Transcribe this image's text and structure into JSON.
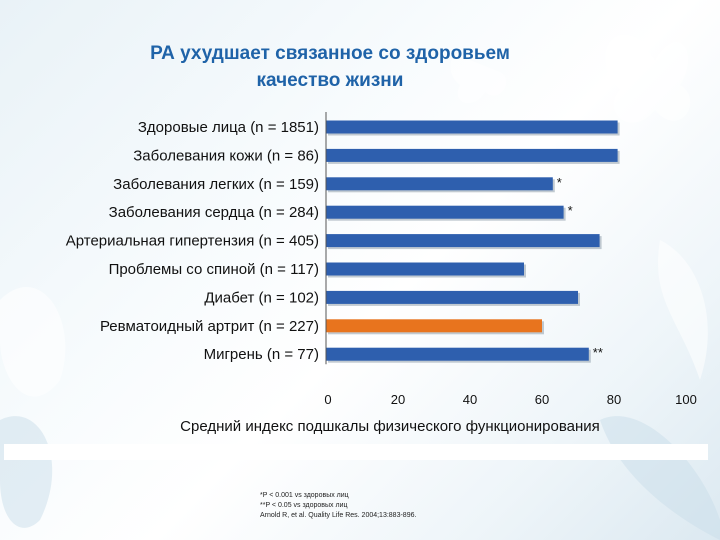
{
  "title_line1": "РА ухудшает связанное со здоровьем",
  "title_line2": "качество жизни",
  "colors": {
    "bar": "#2e5fae",
    "highlight": "#e8741e",
    "title": "#1f63a8"
  },
  "chart_data": {
    "type": "bar",
    "orientation": "horizontal",
    "categories": [
      "Здоровые лица (n = 1851)",
      "Заболевания кожи (n = 86)",
      "Заболевания легких (n = 159)",
      "Заболевания сердца (n = 284)",
      "Артериальная гипертензия (n = 405)",
      "Проблемы со спиной (n = 117)",
      "Диабет (n = 102)",
      "Ревматоидный артрит (n = 227)",
      "Мигрень (n = 77)"
    ],
    "values": [
      81,
      81,
      63,
      66,
      76,
      55,
      70,
      60,
      73
    ],
    "annotations": [
      "",
      "",
      "*",
      "*",
      "",
      "",
      "",
      "",
      "**"
    ],
    "highlight_index": 7,
    "xlabel": "Средний индекс подшкалы физического функционирования",
    "xlim": [
      0,
      100
    ],
    "xticks": [
      "0",
      "20",
      "40",
      "60",
      "80",
      "100"
    ],
    "grid": false
  },
  "footnotes": [
    "*P < 0.001 vs здоровых лиц",
    "**P < 0.05 vs здоровых лиц",
    "Arnold R, et al. Quality Life Res. 2004;13:883-896."
  ]
}
